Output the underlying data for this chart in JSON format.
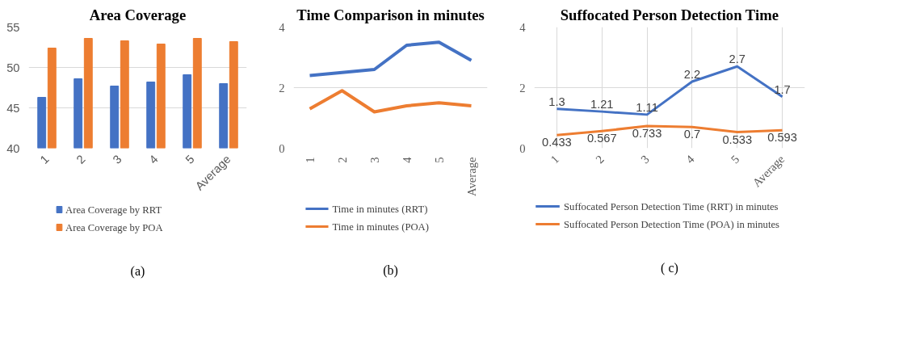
{
  "chart_data": [
    {
      "type": "bar",
      "title": "Area Coverage",
      "categories": [
        "1",
        "2",
        "3",
        "4",
        "5",
        "Average"
      ],
      "series": [
        {
          "name": "Area Coverage by RRT",
          "color": "#4472c4",
          "values": [
            46.3,
            48.6,
            47.7,
            48.2,
            49.1,
            48.0
          ]
        },
        {
          "name": "Area Coverage by POA",
          "color": "#ed7d31",
          "values": [
            52.4,
            53.6,
            53.3,
            52.9,
            53.6,
            53.2
          ]
        }
      ],
      "ylim": [
        40,
        55
      ],
      "yticks": [
        40,
        45,
        50,
        55
      ],
      "grid": "y",
      "legend": "bottom",
      "annotations": [
        "(a)"
      ]
    },
    {
      "type": "line",
      "title": "Time Comparison in minutes",
      "categories": [
        "1",
        "2",
        "3",
        "4",
        "5",
        "Average"
      ],
      "series": [
        {
          "name": "Time in minutes (RRT)",
          "color": "#4472c4",
          "values": [
            2.4,
            2.5,
            2.6,
            3.4,
            3.5,
            2.9
          ]
        },
        {
          "name": "Time in minutes (POA)",
          "color": "#ed7d31",
          "values": [
            1.3,
            1.9,
            1.2,
            1.4,
            1.5,
            1.4
          ]
        }
      ],
      "ylim": [
        0,
        4
      ],
      "yticks": [
        0,
        2,
        4
      ],
      "grid": "y",
      "legend": "bottom",
      "annotations": [
        "(b)"
      ]
    },
    {
      "type": "line",
      "title": "Suffocated Person Detection Time",
      "categories": [
        "1",
        "2",
        "3",
        "4",
        "5",
        "Average"
      ],
      "series": [
        {
          "name": "Suffocated Person Detection Time (RRT) in minutes",
          "color": "#4472c4",
          "values": [
            1.3,
            1.21,
            1.11,
            2.2,
            2.7,
            1.7
          ]
        },
        {
          "name": "Suffocated Person Detection Time (POA) in minutes",
          "color": "#ed7d31",
          "values": [
            0.433,
            0.567,
            0.733,
            0.7,
            0.533,
            0.593
          ]
        }
      ],
      "ylim": [
        0,
        4
      ],
      "yticks": [
        0,
        2,
        4
      ],
      "grid": true,
      "legend": "bottom",
      "data_labels": true,
      "annotations": [
        "( c)"
      ]
    }
  ]
}
